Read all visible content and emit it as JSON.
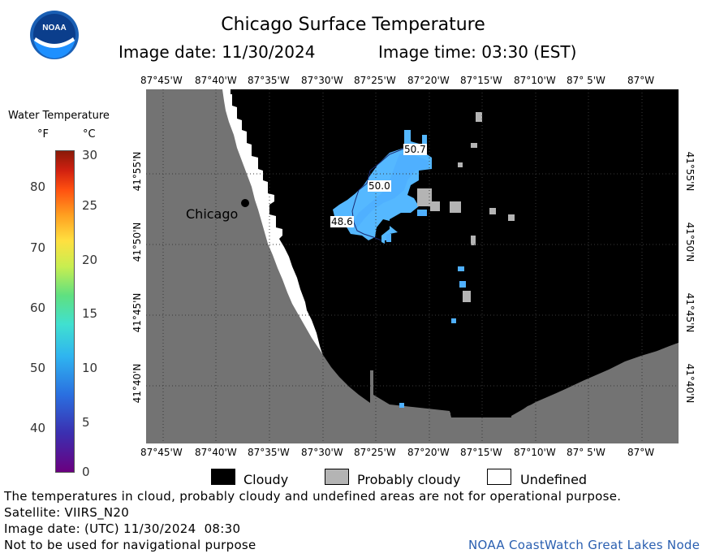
{
  "header": {
    "logo_text": "NOAA",
    "title": "Chicago Surface Temperature",
    "image_date_label": "Image date: 11/30/2024",
    "image_time_label": "Image time: 03:30 (EST)"
  },
  "axes": {
    "lon_labels": [
      "87°45'W",
      "87°40'W",
      "87°35'W",
      "87°30'W",
      "87°25'W",
      "87°20'W",
      "87°15'W",
      "87°10'W",
      "87° 5'W",
      "87°W"
    ],
    "lat_labels": [
      "41°55'N",
      "41°50'N",
      "41°45'N",
      "41°40'N"
    ]
  },
  "color_scale": {
    "title": "Water Temperature",
    "unit_f": "°F",
    "unit_c": "°C",
    "f_ticks": [
      "80",
      "70",
      "60",
      "50",
      "40"
    ],
    "c_ticks": [
      "30",
      "25",
      "20",
      "15",
      "10",
      "5",
      "0"
    ],
    "colors": [
      "#6a0080",
      "#3b2fb0",
      "#2a6fe0",
      "#2fb4f0",
      "#40e0d0",
      "#5fe080",
      "#c8ee50",
      "#ffe040",
      "#ffa020",
      "#ff5010",
      "#d02010",
      "#8a1a08"
    ]
  },
  "map": {
    "city_label": "Chicago",
    "temp_labels": [
      "50.7",
      "50.0",
      "48.6"
    ],
    "colors": {
      "cloudy": "#000000",
      "probably_cloudy": "#b4b4b4",
      "land": "#737373",
      "water_cold": "#46aaff",
      "water_warm": "#5fc8ff"
    }
  },
  "legend": {
    "cloudy": "Cloudy",
    "probably_cloudy": "Probably cloudy",
    "undefined": "Undefined"
  },
  "footer": {
    "note": "The temperatures in cloud, probably cloudy and undefined areas are not for operational purpose.",
    "satellite": "Satellite: VIIRS_N20",
    "utc_date": "Image date: (UTC) 11/30/2024  08:30",
    "nav_warning": "Not to be used for navigational purpose",
    "credit": "NOAA CoastWatch Great Lakes Node"
  }
}
